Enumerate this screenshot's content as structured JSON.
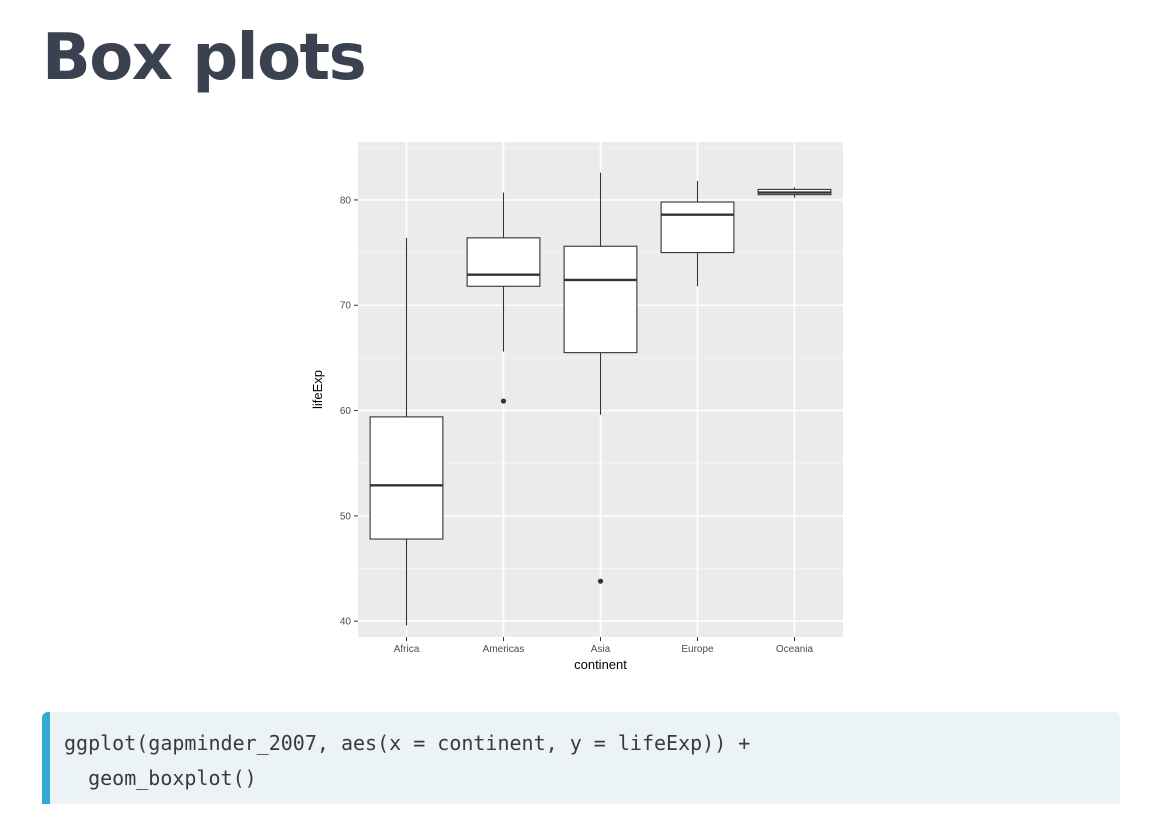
{
  "slide": {
    "title": "Box plots"
  },
  "code": {
    "lines": [
      "ggplot(gapminder_2007, aes(x = continent, y = lifeExp)) +",
      "  geom_boxplot()"
    ]
  },
  "chart_data": {
    "type": "boxplot",
    "xlabel": "continent",
    "ylabel": "lifeExp",
    "ylim": [
      38.5,
      85.5
    ],
    "yticks": [
      40,
      50,
      60,
      70,
      80
    ],
    "grid": true,
    "background": "#ebebeb",
    "categories": [
      "Africa",
      "Americas",
      "Asia",
      "Europe",
      "Oceania"
    ],
    "boxes": [
      {
        "category": "Africa",
        "min": 39.6,
        "q1": 47.8,
        "median": 52.9,
        "q3": 59.4,
        "max": 76.4,
        "outliers": []
      },
      {
        "category": "Americas",
        "min": 65.6,
        "q1": 71.8,
        "median": 72.9,
        "q3": 76.4,
        "max": 80.7,
        "outliers": [
          60.9
        ]
      },
      {
        "category": "Asia",
        "min": 59.6,
        "q1": 65.5,
        "median": 72.4,
        "q3": 75.6,
        "max": 82.6,
        "outliers": [
          43.8
        ]
      },
      {
        "category": "Europe",
        "min": 71.8,
        "q1": 75.0,
        "median": 78.6,
        "q3": 79.8,
        "max": 81.8,
        "outliers": []
      },
      {
        "category": "Oceania",
        "min": 80.2,
        "q1": 80.5,
        "median": 80.7,
        "q3": 81.0,
        "max": 81.2,
        "outliers": []
      }
    ]
  }
}
